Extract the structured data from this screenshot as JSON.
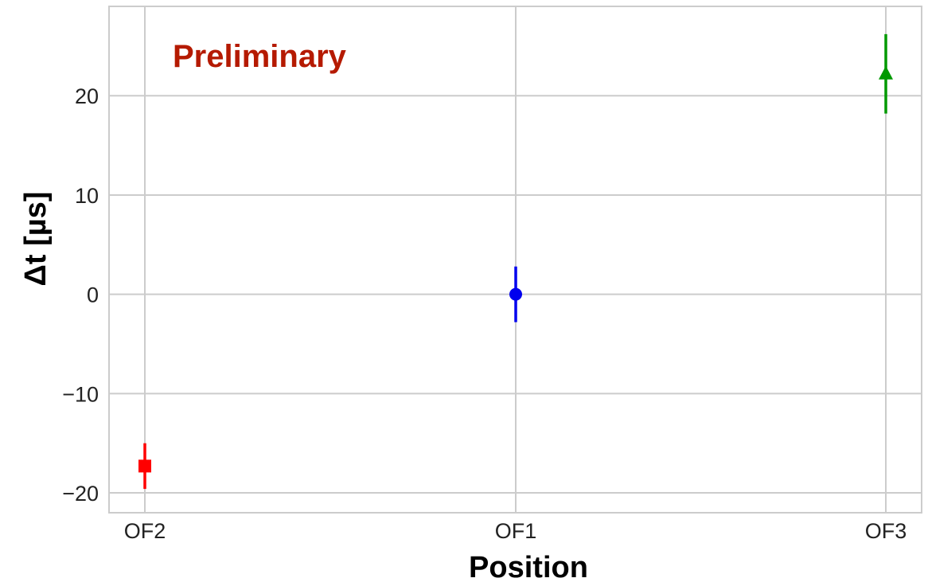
{
  "chart_data": {
    "type": "scatter",
    "categories": [
      "OF2",
      "OF1",
      "OF3"
    ],
    "points": [
      {
        "category": "OF2",
        "y": -17.3,
        "yerr": 2.3,
        "marker": "square",
        "color": "#ff0000"
      },
      {
        "category": "OF1",
        "y": 0.0,
        "yerr": 2.8,
        "marker": "circle",
        "color": "#0000ee"
      },
      {
        "category": "OF3",
        "y": 22.2,
        "yerr": 4.0,
        "marker": "triangle",
        "color": "#009900"
      }
    ],
    "title": "",
    "xlabel": "Position",
    "ylabel": "Δt [µs]",
    "ylim": [
      -22,
      29
    ],
    "yticks": [
      -20,
      -10,
      0,
      10,
      20
    ],
    "ytick_labels": [
      "−20",
      "−10",
      "0",
      "10",
      "20"
    ],
    "grid": true,
    "annotation": {
      "text": "Preliminary",
      "color": "#b51a00"
    }
  }
}
